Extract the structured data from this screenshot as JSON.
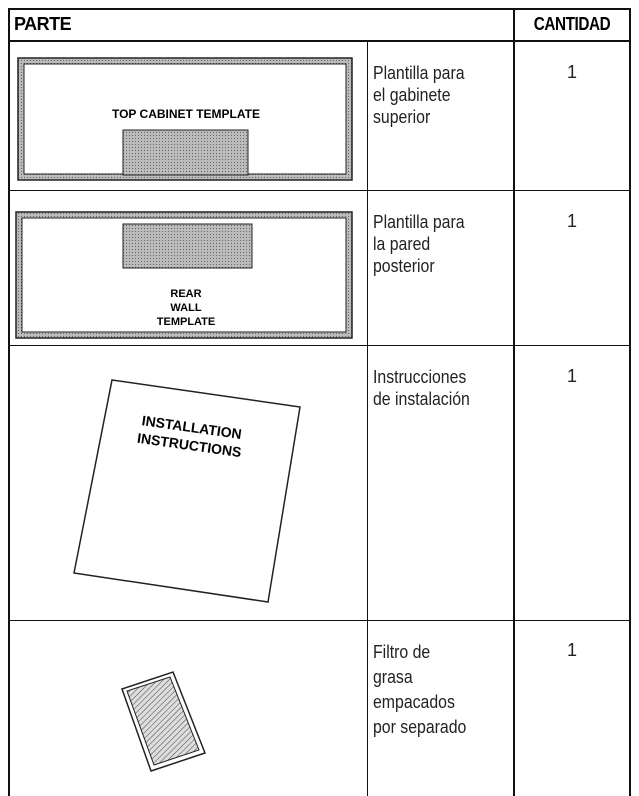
{
  "header": {
    "parte": "PARTE",
    "cantidad": "CANTIDAD"
  },
  "rows": [
    {
      "illustration": [
        "TOP CABINET TEMPLATE"
      ],
      "description": [
        "Plantilla para",
        "el gabinete",
        "superior"
      ],
      "quantity": 1
    },
    {
      "illustration": [
        "REAR",
        "WALL",
        "TEMPLATE"
      ],
      "description": [
        "Plantilla para",
        "la pared",
        "posterior"
      ],
      "quantity": 1
    },
    {
      "illustration": [
        "INSTALLATION",
        "INSTRUCTIONS"
      ],
      "description": [
        "Instrucciones",
        "de instalación"
      ],
      "quantity": 1
    },
    {
      "illustration": [],
      "description": [
        "Filtro de",
        "grasa",
        "empacados",
        "por separado"
      ],
      "quantity": 1
    }
  ]
}
